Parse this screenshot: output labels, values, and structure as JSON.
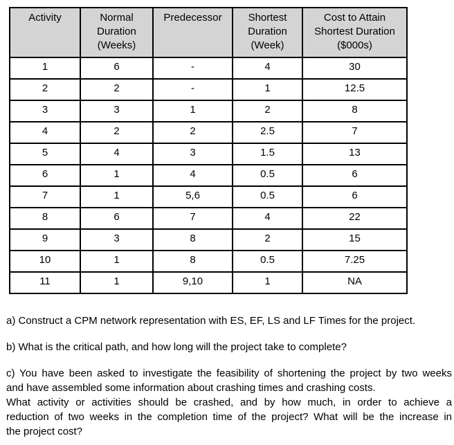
{
  "table": {
    "headers": [
      "Activity",
      "Normal Duration (Weeks)",
      "Predecessor",
      "Shortest Duration (Week)",
      "Cost to Attain Shortest Duration ($000s)"
    ],
    "rows": [
      [
        "1",
        "6",
        "-",
        "4",
        "30"
      ],
      [
        "2",
        "2",
        "-",
        "1",
        "12.5"
      ],
      [
        "3",
        "3",
        "1",
        "2",
        "8"
      ],
      [
        "4",
        "2",
        "2",
        "2.5",
        "7"
      ],
      [
        "5",
        "4",
        "3",
        "1.5",
        "13"
      ],
      [
        "6",
        "1",
        "4",
        "0.5",
        "6"
      ],
      [
        "7",
        "1",
        "5,6",
        "0.5",
        "6"
      ],
      [
        "8",
        "6",
        "7",
        "4",
        "22"
      ],
      [
        "9",
        "3",
        "8",
        "2",
        "15"
      ],
      [
        "10",
        "1",
        "8",
        "0.5",
        "7.25"
      ],
      [
        "11",
        "1",
        "9,10",
        "1",
        "NA"
      ]
    ]
  },
  "questions": {
    "a": "a) Construct a CPM network representation with ES, EF, LS and LF Times for the project.",
    "b": "b) What is the critical path, and how long will the project take to complete?",
    "c_lines": [
      "c) You have been asked to investigate the feasibility of shortening the project by two weeks",
      "and have assembled some information about crashing times and crashing costs.",
      "What activity or activities should be crashed, and by how much, in order to achieve a",
      "reduction of two weeks in the completion time of the project? What will be the increase in",
      "the project cost?"
    ]
  },
  "colors": {
    "page_bg": "#ffffff",
    "header_bg": "#d4d4d4",
    "border": "#000000",
    "text": "#000000"
  }
}
